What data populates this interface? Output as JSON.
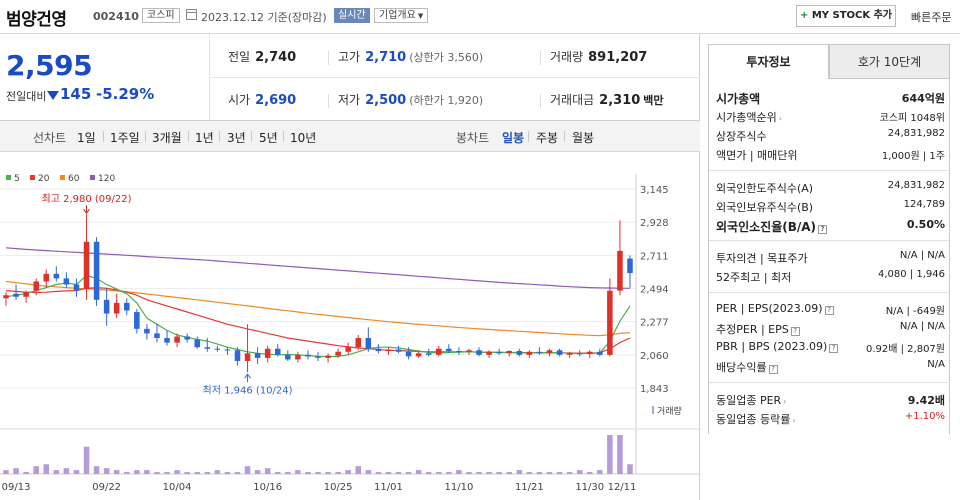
{
  "header": {
    "stock_name": "범양건영",
    "stock_code": "002410",
    "market": "코스피",
    "date_label": "2023.12.12 기준(장마감)",
    "realtime": "실시간",
    "company_overview": "기업개요",
    "mystock_label": "MY STOCK 추가",
    "quick_order": "빠른주문"
  },
  "price": {
    "current": "2,595",
    "change_label": "전일대비",
    "change_value": "145",
    "change_pct": "-5.29%"
  },
  "summary": {
    "prev_close_label": "전일",
    "prev_close": "2,740",
    "high_label": "고가",
    "high": "2,710",
    "upper_limit": "(상한가 3,560)",
    "volume_label": "거래량",
    "volume": "891,207",
    "open_label": "시가",
    "open": "2,690",
    "low_label": "저가",
    "low": "2,500",
    "lower_limit": "(하한가 1,920)",
    "amount_label": "거래대금",
    "amount": "2,310",
    "amount_unit": "백만"
  },
  "tabs": {
    "line_chart_label": "선차트",
    "line_periods": [
      "1일",
      "1주일",
      "3개월",
      "1년",
      "3년",
      "5년",
      "10년"
    ],
    "candle_chart_label": "봉차트",
    "candle_periods": [
      "일봉",
      "주봉",
      "월봉"
    ],
    "active_candle_period": "일봉"
  },
  "chart_data": {
    "type": "candlestick",
    "ma_legend": [
      {
        "name": "5",
        "color": "#4caf50"
      },
      {
        "name": "20",
        "color": "#e53935"
      },
      {
        "name": "60",
        "color": "#f08a24"
      },
      {
        "name": "120",
        "color": "#8e5bb5"
      }
    ],
    "y_ticks": [
      "3,145",
      "2,928",
      "2,711",
      "2,494",
      "2,277",
      "2,060",
      "1,843"
    ],
    "ylim": [
      1843,
      3145
    ],
    "x_ticks": [
      "09/13",
      "09/22",
      "10/04",
      "10/16",
      "10/25",
      "11/01",
      "11/10",
      "11/21",
      "11/30",
      "12/11"
    ],
    "max_annotation": "최고 2,980 (09/22)",
    "min_annotation": "최저 1,946 (10/24)",
    "volume_label": "거래량",
    "candles": [
      {
        "o": 2430,
        "h": 2470,
        "l": 2380,
        "c": 2450
      },
      {
        "o": 2460,
        "h": 2520,
        "l": 2420,
        "c": 2440
      },
      {
        "o": 2440,
        "h": 2480,
        "l": 2400,
        "c": 2470
      },
      {
        "o": 2480,
        "h": 2560,
        "l": 2450,
        "c": 2540
      },
      {
        "o": 2540,
        "h": 2620,
        "l": 2500,
        "c": 2590
      },
      {
        "o": 2590,
        "h": 2640,
        "l": 2540,
        "c": 2560
      },
      {
        "o": 2560,
        "h": 2600,
        "l": 2500,
        "c": 2520
      },
      {
        "o": 2520,
        "h": 2560,
        "l": 2440,
        "c": 2480
      },
      {
        "o": 2490,
        "h": 2980,
        "l": 2420,
        "c": 2800
      },
      {
        "o": 2800,
        "h": 2830,
        "l": 2380,
        "c": 2420
      },
      {
        "o": 2420,
        "h": 2500,
        "l": 2250,
        "c": 2330
      },
      {
        "o": 2330,
        "h": 2460,
        "l": 2300,
        "c": 2400
      },
      {
        "o": 2400,
        "h": 2430,
        "l": 2320,
        "c": 2350
      },
      {
        "o": 2340,
        "h": 2360,
        "l": 2200,
        "c": 2230
      },
      {
        "o": 2230,
        "h": 2260,
        "l": 2160,
        "c": 2200
      },
      {
        "o": 2200,
        "h": 2260,
        "l": 2140,
        "c": 2170
      },
      {
        "o": 2170,
        "h": 2220,
        "l": 2120,
        "c": 2140
      },
      {
        "o": 2140,
        "h": 2200,
        "l": 2110,
        "c": 2180
      },
      {
        "o": 2180,
        "h": 2200,
        "l": 2140,
        "c": 2160
      },
      {
        "o": 2160,
        "h": 2180,
        "l": 2100,
        "c": 2110
      },
      {
        "o": 2110,
        "h": 2170,
        "l": 2080,
        "c": 2100
      },
      {
        "o": 2100,
        "h": 2120,
        "l": 2080,
        "c": 2095
      },
      {
        "o": 2095,
        "h": 2110,
        "l": 2060,
        "c": 2090
      },
      {
        "o": 2090,
        "h": 2110,
        "l": 1990,
        "c": 2020
      },
      {
        "o": 2020,
        "h": 2260,
        "l": 1946,
        "c": 2070
      },
      {
        "o": 2070,
        "h": 2110,
        "l": 2000,
        "c": 2040
      },
      {
        "o": 2040,
        "h": 2120,
        "l": 2010,
        "c": 2100
      },
      {
        "o": 2100,
        "h": 2130,
        "l": 2050,
        "c": 2060
      },
      {
        "o": 2060,
        "h": 2090,
        "l": 2020,
        "c": 2030
      },
      {
        "o": 2030,
        "h": 2080,
        "l": 2010,
        "c": 2060
      },
      {
        "o": 2060,
        "h": 2090,
        "l": 2030,
        "c": 2050
      },
      {
        "o": 2050,
        "h": 2080,
        "l": 2020,
        "c": 2040
      },
      {
        "o": 2040,
        "h": 2070,
        "l": 2010,
        "c": 2055
      },
      {
        "o": 2055,
        "h": 2100,
        "l": 2040,
        "c": 2080
      },
      {
        "o": 2080,
        "h": 2140,
        "l": 2060,
        "c": 2110
      },
      {
        "o": 2110,
        "h": 2190,
        "l": 2090,
        "c": 2170
      },
      {
        "o": 2170,
        "h": 2240,
        "l": 2080,
        "c": 2100
      },
      {
        "o": 2100,
        "h": 2130,
        "l": 2070,
        "c": 2085
      },
      {
        "o": 2085,
        "h": 2110,
        "l": 2060,
        "c": 2095
      },
      {
        "o": 2095,
        "h": 2120,
        "l": 2070,
        "c": 2080
      },
      {
        "o": 2080,
        "h": 2110,
        "l": 2030,
        "c": 2050
      },
      {
        "o": 2050,
        "h": 2090,
        "l": 2040,
        "c": 2070
      },
      {
        "o": 2070,
        "h": 2100,
        "l": 2050,
        "c": 2060
      },
      {
        "o": 2060,
        "h": 2120,
        "l": 2050,
        "c": 2100
      },
      {
        "o": 2100,
        "h": 2130,
        "l": 2070,
        "c": 2085
      },
      {
        "o": 2085,
        "h": 2110,
        "l": 2060,
        "c": 2080
      },
      {
        "o": 2080,
        "h": 2100,
        "l": 2060,
        "c": 2090
      },
      {
        "o": 2090,
        "h": 2110,
        "l": 2050,
        "c": 2060
      },
      {
        "o": 2060,
        "h": 2090,
        "l": 2040,
        "c": 2080
      },
      {
        "o": 2080,
        "h": 2100,
        "l": 2060,
        "c": 2070
      },
      {
        "o": 2070,
        "h": 2090,
        "l": 2050,
        "c": 2085
      },
      {
        "o": 2085,
        "h": 2100,
        "l": 2050,
        "c": 2060
      },
      {
        "o": 2060,
        "h": 2090,
        "l": 2040,
        "c": 2080
      },
      {
        "o": 2080,
        "h": 2110,
        "l": 2060,
        "c": 2070
      },
      {
        "o": 2070,
        "h": 2100,
        "l": 2050,
        "c": 2090
      },
      {
        "o": 2090,
        "h": 2100,
        "l": 2050,
        "c": 2060
      },
      {
        "o": 2060,
        "h": 2080,
        "l": 2040,
        "c": 2070
      },
      {
        "o": 2070,
        "h": 2090,
        "l": 2050,
        "c": 2065
      },
      {
        "o": 2065,
        "h": 2090,
        "l": 2040,
        "c": 2080
      },
      {
        "o": 2080,
        "h": 2100,
        "l": 2050,
        "c": 2060
      },
      {
        "o": 2060,
        "h": 2560,
        "l": 2050,
        "c": 2480
      },
      {
        "o": 2480,
        "h": 2940,
        "l": 2450,
        "c": 2740
      },
      {
        "o": 2690,
        "h": 2710,
        "l": 2500,
        "c": 2595
      }
    ],
    "ma5": [
      2440,
      2450,
      2460,
      2480,
      2500,
      2520,
      2530,
      2520,
      2580,
      2560,
      2520,
      2490,
      2460,
      2400,
      2300,
      2260,
      2220,
      2190,
      2175,
      2160,
      2150,
      2130,
      2110,
      2095,
      2080,
      2070,
      2065,
      2060,
      2062,
      2060,
      2055,
      2050,
      2048,
      2050,
      2060,
      2080,
      2100,
      2110,
      2110,
      2105,
      2095,
      2085,
      2075,
      2072,
      2075,
      2078,
      2080,
      2078,
      2076,
      2075,
      2075,
      2073,
      2072,
      2074,
      2075,
      2073,
      2070,
      2068,
      2070,
      2070,
      2150,
      2280,
      2380
    ],
    "ma20": [
      2480,
      2475,
      2470,
      2468,
      2470,
      2475,
      2478,
      2480,
      2495,
      2500,
      2495,
      2485,
      2470,
      2450,
      2420,
      2400,
      2380,
      2360,
      2340,
      2320,
      2300,
      2280,
      2260,
      2245,
      2230,
      2215,
      2200,
      2185,
      2170,
      2160,
      2150,
      2140,
      2130,
      2120,
      2112,
      2105,
      2100,
      2095,
      2090,
      2088,
      2085,
      2082,
      2080,
      2080,
      2080,
      2080,
      2080,
      2078,
      2077,
      2076,
      2075,
      2075,
      2074,
      2074,
      2073,
      2073,
      2072,
      2071,
      2072,
      2073,
      2100,
      2140,
      2170
    ],
    "ma60": [
      2540,
      2532,
      2524,
      2516,
      2510,
      2505,
      2500,
      2495,
      2492,
      2488,
      2484,
      2478,
      2472,
      2465,
      2458,
      2450,
      2442,
      2435,
      2428,
      2420,
      2412,
      2404,
      2396,
      2388,
      2380,
      2372,
      2364,
      2356,
      2348,
      2340,
      2332,
      2325,
      2318,
      2311,
      2304,
      2297,
      2290,
      2283,
      2277,
      2271,
      2265,
      2259,
      2254,
      2249,
      2244,
      2239,
      2234,
      2230,
      2226,
      2222,
      2218,
      2214,
      2210,
      2206,
      2202,
      2198,
      2194,
      2191,
      2188,
      2186,
      2192,
      2200,
      2205
    ],
    "ma120": [
      2760,
      2755,
      2750,
      2746,
      2742,
      2738,
      2734,
      2730,
      2727,
      2723,
      2719,
      2715,
      2711,
      2707,
      2703,
      2699,
      2695,
      2691,
      2687,
      2683,
      2679,
      2674,
      2669,
      2664,
      2659,
      2654,
      2649,
      2644,
      2639,
      2634,
      2629,
      2624,
      2619,
      2614,
      2609,
      2604,
      2599,
      2594,
      2589,
      2584,
      2579,
      2574,
      2569,
      2564,
      2559,
      2554,
      2549,
      2544,
      2539,
      2534,
      2530,
      2526,
      2522,
      2518,
      2514,
      2510,
      2506,
      2503,
      2500,
      2498,
      2497,
      2496,
      2495
    ],
    "volumes": [
      2,
      3,
      1,
      4,
      5,
      2,
      3,
      2,
      14,
      4,
      3,
      2,
      1,
      2,
      2,
      1,
      1,
      2,
      1,
      1,
      1,
      2,
      1,
      1,
      4,
      2,
      3,
      1,
      1,
      2,
      1,
      1,
      1,
      1,
      2,
      4,
      2,
      1,
      1,
      1,
      1,
      2,
      1,
      1,
      1,
      2,
      1,
      1,
      1,
      1,
      1,
      2,
      1,
      1,
      1,
      1,
      1,
      2,
      1,
      2,
      20,
      20,
      5
    ]
  },
  "invest": {
    "tab_invest": "투자정보",
    "tab_orderbook": "호가 10단계",
    "market_cap_label": "시가총액",
    "market_cap": "644억원",
    "cap_rank_label": "시가총액순위",
    "cap_rank": "코스피 1048위",
    "shares_label": "상장주식수",
    "shares": "24,831,982",
    "par_label": "액면가 | 매매단위",
    "par": "1,000원 | 1주",
    "foreign_limit_label": "외국인한도주식수(A)",
    "foreign_limit": "24,831,982",
    "foreign_hold_label": "외국인보유주식수(B)",
    "foreign_hold": "124,789",
    "foreign_ratio_label": "외국인소진율(B/A)",
    "foreign_ratio": "0.50%",
    "opinion_label": "투자의견 | 목표주가",
    "opinion": "N/A | N/A",
    "w52_label": "52주최고 | 최저",
    "w52": "4,080 | 1,946",
    "per_label": "PER | EPS(2023.09)",
    "per": "N/A | -649원",
    "est_per_label": "추정PER | EPS",
    "est_per": "N/A | N/A",
    "pbr_label": "PBR | BPS (2023.09)",
    "pbr": "0.92배 | 2,807원",
    "div_label": "배당수익률",
    "div": "N/A",
    "sector_per_label": "동일업종 PER",
    "sector_per": "9.42배",
    "sector_rate_label": "동일업종 등락률",
    "sector_rate": "+1.10%"
  }
}
